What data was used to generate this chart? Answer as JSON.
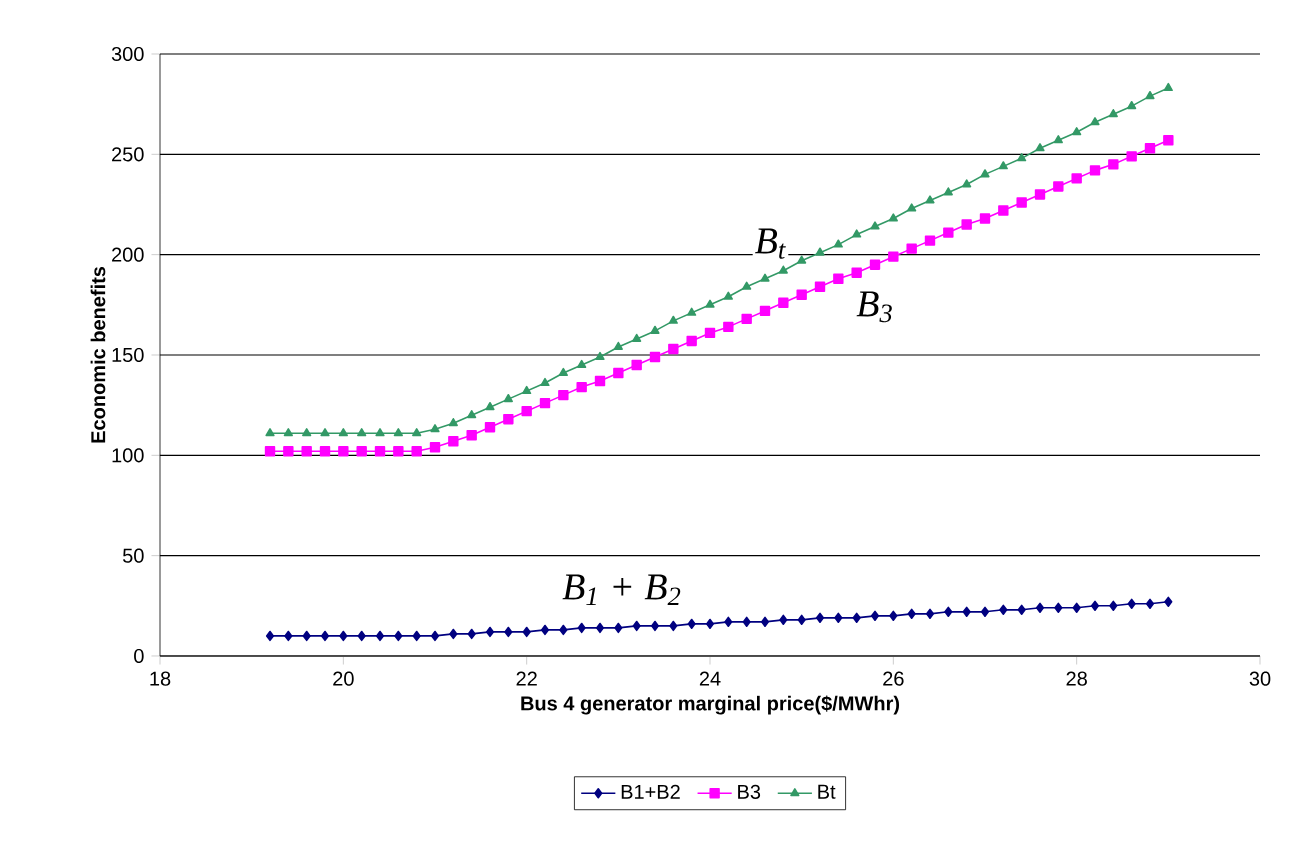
{
  "chart_data": {
    "type": "line",
    "xlabel": "Bus 4 generator marginal price($/MWhr)",
    "ylabel": "Economic benefits",
    "x": [
      19.2,
      19.4,
      19.6,
      19.8,
      20.0,
      20.2,
      20.4,
      20.6,
      20.8,
      21.0,
      21.2,
      21.4,
      21.6,
      21.8,
      22.0,
      22.2,
      22.4,
      22.6,
      22.8,
      23.0,
      23.2,
      23.4,
      23.6,
      23.8,
      24.0,
      24.2,
      24.4,
      24.6,
      24.8,
      25.0,
      25.2,
      25.4,
      25.6,
      25.8,
      26.0,
      26.2,
      26.4,
      26.6,
      26.8,
      27.0,
      27.2,
      27.4,
      27.6,
      27.8,
      28.0,
      28.2,
      28.4,
      28.6,
      28.8,
      29.0
    ],
    "series": [
      {
        "name": "B1+B2",
        "color": "#000080",
        "marker": "diamond",
        "values": [
          10,
          10,
          10,
          10,
          10,
          10,
          10,
          10,
          10,
          10,
          11,
          11,
          12,
          12,
          12,
          13,
          13,
          14,
          14,
          14,
          15,
          15,
          15,
          16,
          16,
          17,
          17,
          17,
          18,
          18,
          19,
          19,
          19,
          20,
          20,
          21,
          21,
          22,
          22,
          22,
          23,
          23,
          24,
          24,
          24,
          25,
          25,
          26,
          26,
          27
        ]
      },
      {
        "name": "B3",
        "color": "#ff00ff",
        "marker": "square",
        "values": [
          102,
          102,
          102,
          102,
          102,
          102,
          102,
          102,
          102,
          104,
          107,
          110,
          114,
          118,
          122,
          126,
          130,
          134,
          137,
          141,
          145,
          149,
          153,
          157,
          161,
          164,
          168,
          172,
          176,
          180,
          184,
          188,
          191,
          195,
          199,
          203,
          207,
          211,
          215,
          218,
          222,
          226,
          230,
          234,
          238,
          242,
          245,
          249,
          253,
          257
        ]
      },
      {
        "name": "Bt",
        "color": "#339966",
        "marker": "triangle",
        "values": [
          111,
          111,
          111,
          111,
          111,
          111,
          111,
          111,
          111,
          113,
          116,
          120,
          124,
          128,
          132,
          136,
          141,
          145,
          149,
          154,
          158,
          162,
          167,
          171,
          175,
          179,
          184,
          188,
          192,
          197,
          201,
          205,
          210,
          214,
          218,
          223,
          227,
          231,
          235,
          240,
          244,
          248,
          253,
          257,
          261,
          266,
          270,
          274,
          279,
          283
        ]
      }
    ],
    "xlim": [
      18,
      30
    ],
    "xticks": [
      18,
      20,
      22,
      24,
      26,
      28,
      30
    ],
    "ylim": [
      0,
      300
    ],
    "yticks": [
      0,
      50,
      100,
      150,
      200,
      250,
      300
    ],
    "grid": "y",
    "legend": "bottom",
    "line_style": "solid",
    "annotations": [
      "B$_{t}$",
      "B$_{3}$",
      "B$_{1}$ + B$_{2}$"
    ]
  }
}
